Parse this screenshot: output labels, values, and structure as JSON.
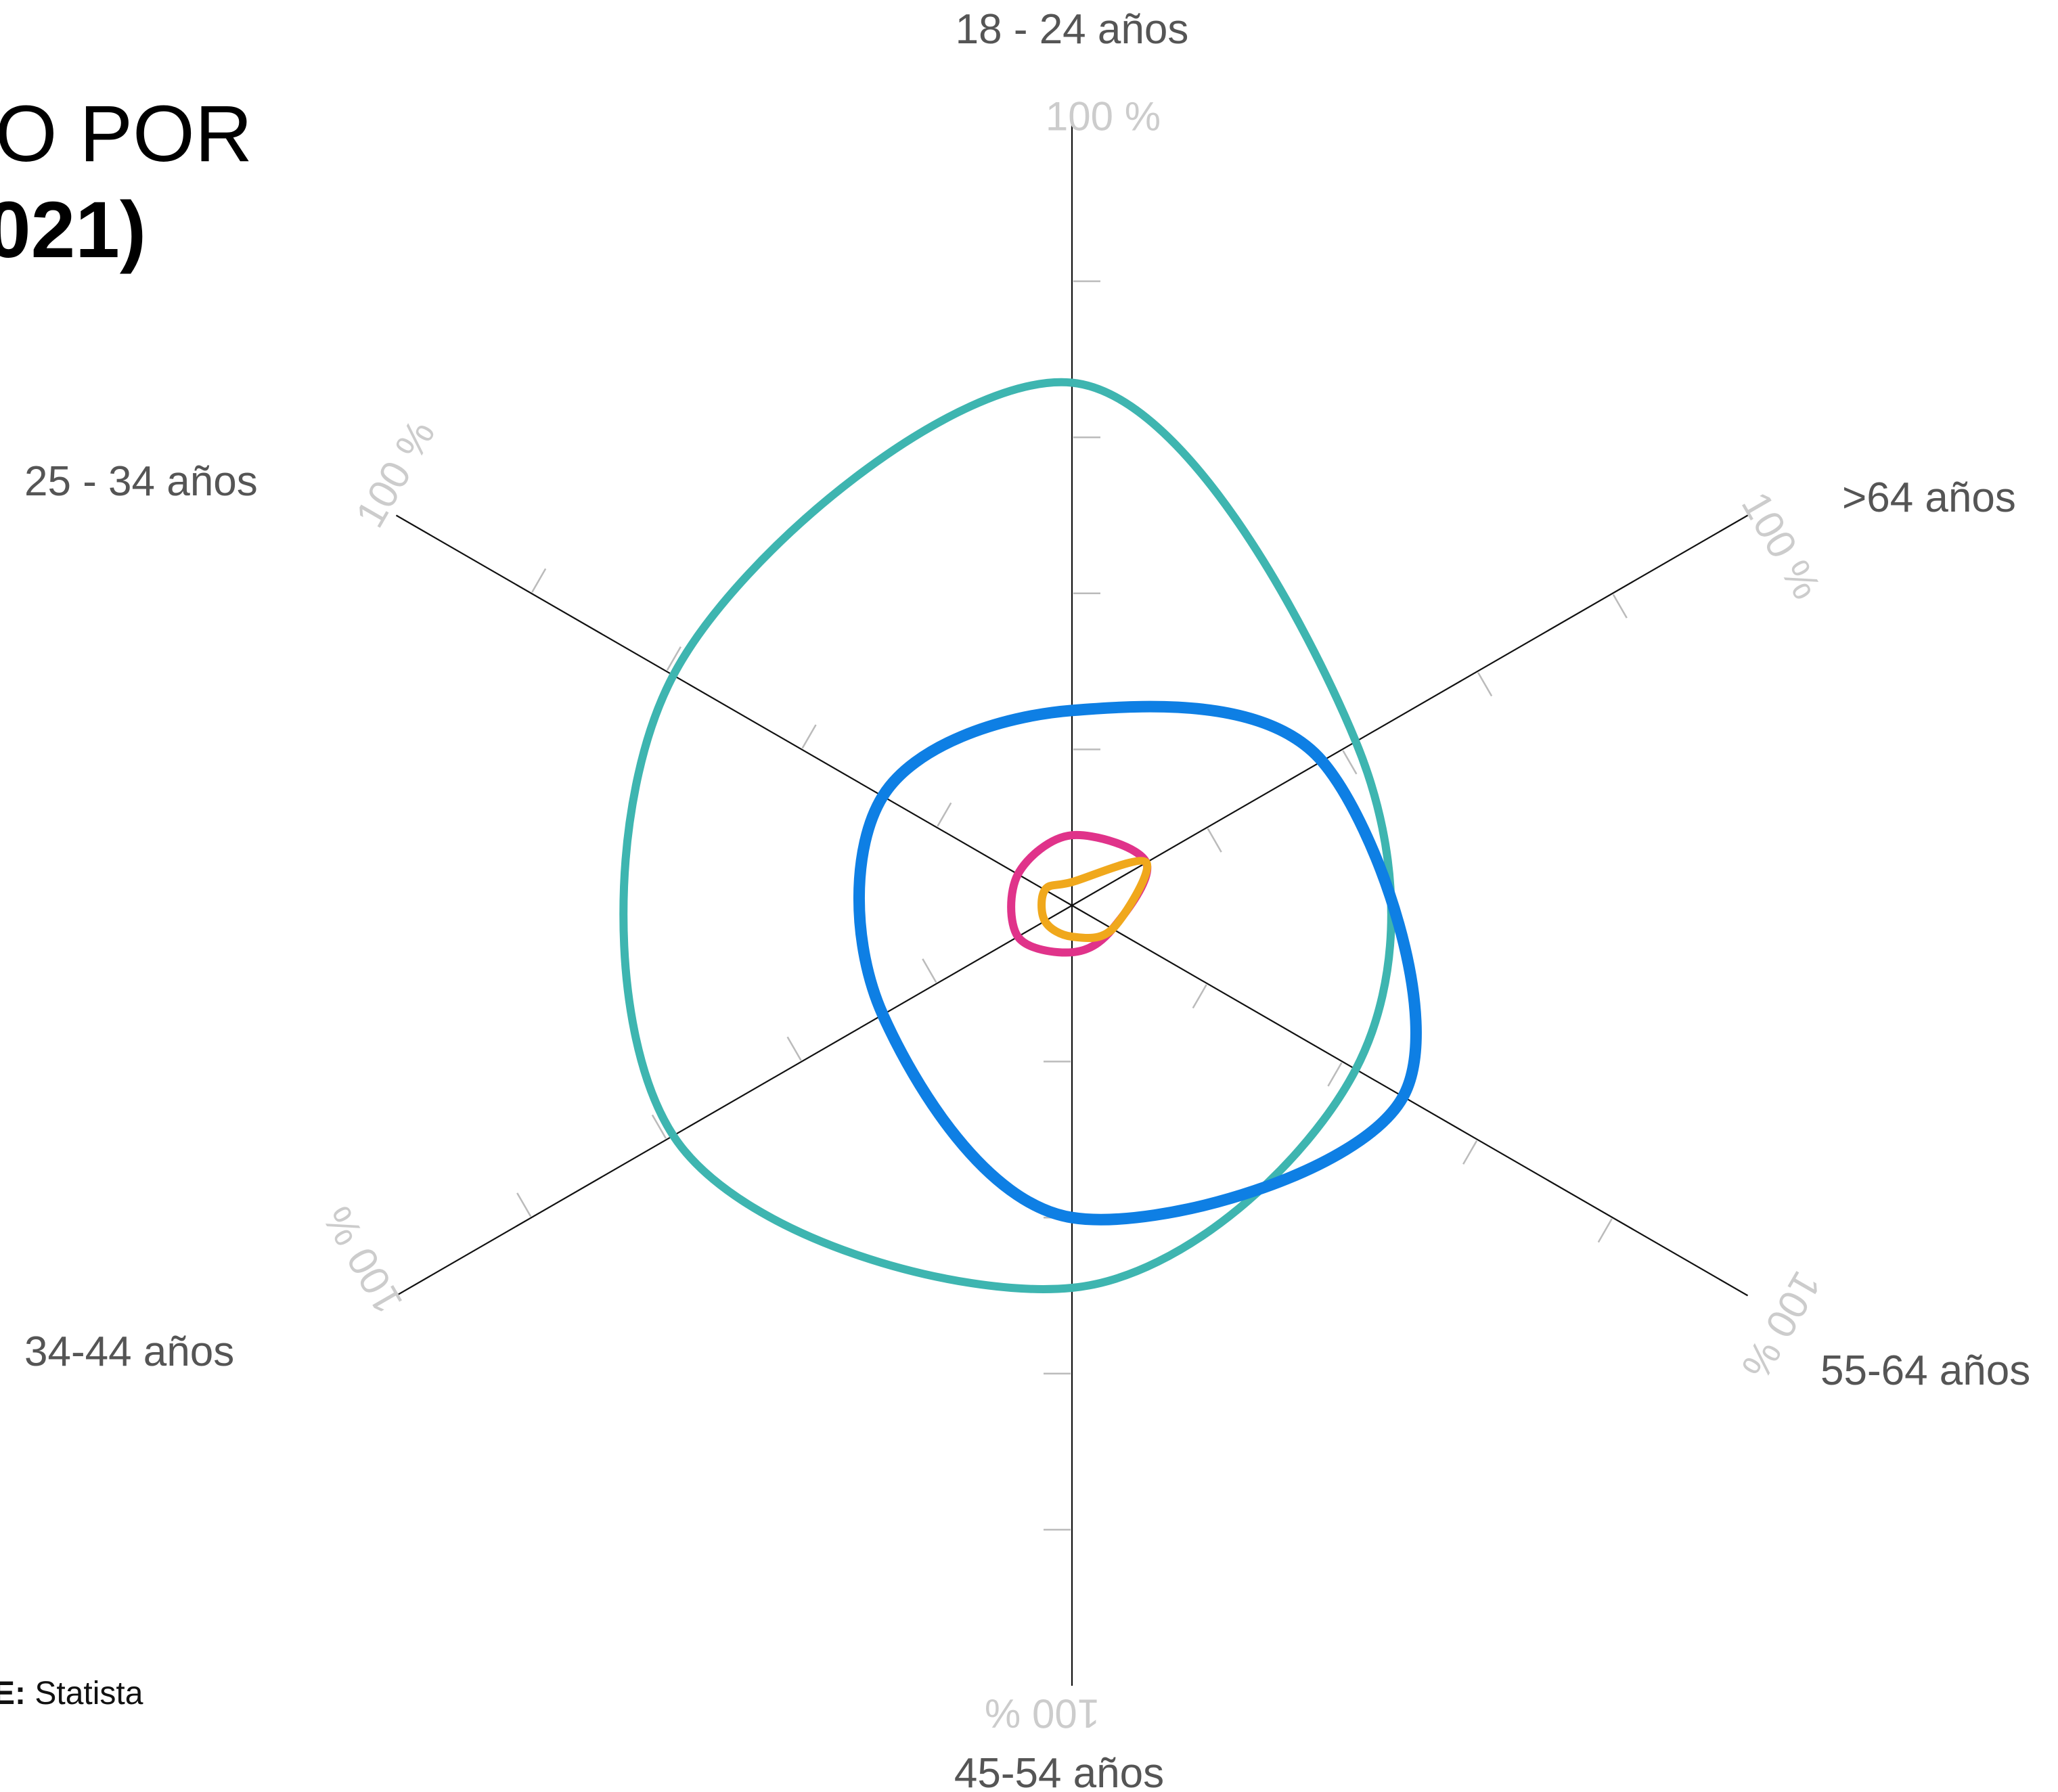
{
  "title": {
    "line1": "IO POR",
    "line2": "021)"
  },
  "source": {
    "label": "E:",
    "value": "Statista"
  },
  "chart_data": {
    "type": "radar",
    "axis_max_label": "100 %",
    "axes": [
      "18 - 24 años",
      ">64 años",
      "55-64 años",
      "45-54 años",
      "34-44 años",
      "25 - 34 años"
    ],
    "rlim": [
      0,
      100
    ],
    "grid_ticks": [
      20,
      40,
      60,
      80
    ],
    "series": [
      {
        "color": "#3eb5b0",
        "values": [
          67,
          42,
          42,
          49,
          59,
          59
        ]
      },
      {
        "color": "#0e7fe4",
        "values": [
          25,
          37,
          49,
          40,
          28,
          28
        ]
      },
      {
        "color": "#e0338a",
        "values": [
          9,
          11,
          6,
          6,
          8,
          8
        ]
      },
      {
        "color": "#f0a81c",
        "values": [
          3,
          11,
          6,
          4,
          4,
          4
        ]
      }
    ],
    "colors": {
      "axis": "#111111",
      "tick": "#bbbbbb",
      "axis_label": "#555555",
      "max_label": "#cccccc"
    }
  }
}
